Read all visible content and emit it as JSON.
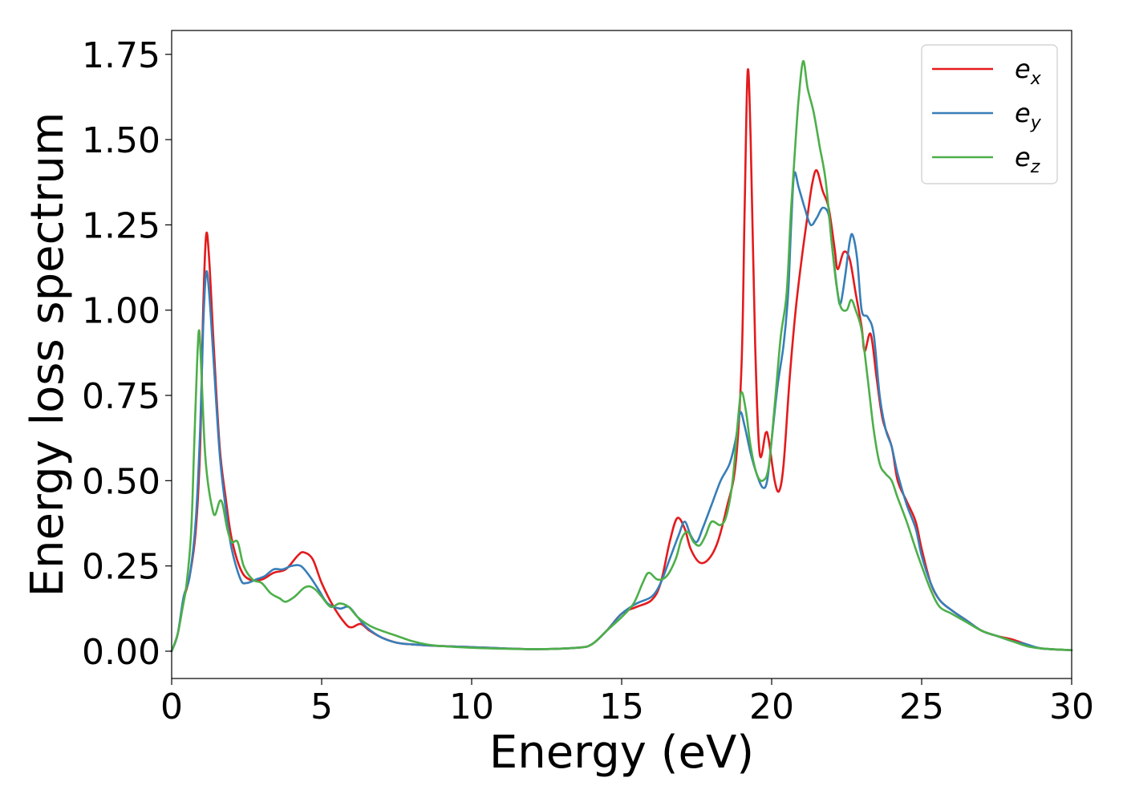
{
  "chart_data": {
    "type": "line",
    "title": "",
    "xlabel": "Energy (eV)",
    "ylabel": "Energy loss spectrum",
    "xlim": [
      0,
      30
    ],
    "ylim": [
      -0.08,
      1.82
    ],
    "xticks": [
      0,
      5,
      10,
      15,
      20,
      25,
      30
    ],
    "xtick_labels": [
      "0",
      "5",
      "10",
      "15",
      "20",
      "25",
      "30"
    ],
    "yticks": [
      0.0,
      0.25,
      0.5,
      0.75,
      1.0,
      1.25,
      1.5,
      1.75
    ],
    "ytick_labels": [
      "0.00",
      "0.25",
      "0.50",
      "0.75",
      "1.00",
      "1.25",
      "1.50",
      "1.75"
    ],
    "grid": false,
    "legend_position": "top-right",
    "series": [
      {
        "name": "e_x",
        "legend_base": "e",
        "legend_sub": "x",
        "color": "#e41a1c",
        "points": [
          [
            0,
            0
          ],
          [
            0.2,
            0.05
          ],
          [
            0.4,
            0.15
          ],
          [
            0.6,
            0.22
          ],
          [
            0.8,
            0.35
          ],
          [
            0.95,
            0.6
          ],
          [
            1.05,
            1.0
          ],
          [
            1.15,
            1.22
          ],
          [
            1.25,
            1.15
          ],
          [
            1.4,
            0.9
          ],
          [
            1.6,
            0.6
          ],
          [
            1.8,
            0.45
          ],
          [
            2.0,
            0.33
          ],
          [
            2.3,
            0.24
          ],
          [
            2.6,
            0.21
          ],
          [
            3.0,
            0.21
          ],
          [
            3.4,
            0.23
          ],
          [
            3.8,
            0.24
          ],
          [
            4.2,
            0.28
          ],
          [
            4.4,
            0.29
          ],
          [
            4.7,
            0.27
          ],
          [
            5.0,
            0.2
          ],
          [
            5.4,
            0.13
          ],
          [
            5.8,
            0.08
          ],
          [
            6.0,
            0.07
          ],
          [
            6.3,
            0.08
          ],
          [
            6.6,
            0.06
          ],
          [
            7.0,
            0.04
          ],
          [
            7.5,
            0.025
          ],
          [
            8.0,
            0.02
          ],
          [
            9.0,
            0.015
          ],
          [
            10.0,
            0.012
          ],
          [
            12.0,
            0.006
          ],
          [
            13.5,
            0.01
          ],
          [
            14.0,
            0.02
          ],
          [
            14.5,
            0.06
          ],
          [
            15.0,
            0.11
          ],
          [
            15.5,
            0.13
          ],
          [
            16.0,
            0.15
          ],
          [
            16.3,
            0.2
          ],
          [
            16.6,
            0.32
          ],
          [
            16.85,
            0.39
          ],
          [
            17.1,
            0.36
          ],
          [
            17.3,
            0.3
          ],
          [
            17.6,
            0.26
          ],
          [
            17.9,
            0.27
          ],
          [
            18.2,
            0.32
          ],
          [
            18.5,
            0.42
          ],
          [
            18.8,
            0.55
          ],
          [
            19.0,
            0.85
          ],
          [
            19.1,
            1.3
          ],
          [
            19.2,
            1.7
          ],
          [
            19.3,
            1.5
          ],
          [
            19.45,
            0.9
          ],
          [
            19.6,
            0.58
          ],
          [
            19.8,
            0.64
          ],
          [
            19.9,
            0.62
          ],
          [
            20.1,
            0.5
          ],
          [
            20.25,
            0.47
          ],
          [
            20.4,
            0.55
          ],
          [
            20.6,
            0.8
          ],
          [
            20.8,
            1.0
          ],
          [
            21.0,
            1.15
          ],
          [
            21.2,
            1.28
          ],
          [
            21.35,
            1.37
          ],
          [
            21.5,
            1.41
          ],
          [
            21.7,
            1.35
          ],
          [
            21.9,
            1.3
          ],
          [
            22.1,
            1.18
          ],
          [
            22.2,
            1.12
          ],
          [
            22.4,
            1.17
          ],
          [
            22.6,
            1.15
          ],
          [
            22.8,
            1.05
          ],
          [
            23.0,
            0.95
          ],
          [
            23.1,
            0.88
          ],
          [
            23.3,
            0.93
          ],
          [
            23.5,
            0.8
          ],
          [
            23.7,
            0.68
          ],
          [
            24.0,
            0.6
          ],
          [
            24.2,
            0.5
          ],
          [
            24.5,
            0.44
          ],
          [
            24.8,
            0.38
          ],
          [
            25.0,
            0.3
          ],
          [
            25.3,
            0.2
          ],
          [
            25.6,
            0.15
          ],
          [
            26.0,
            0.12
          ],
          [
            26.5,
            0.09
          ],
          [
            27.0,
            0.06
          ],
          [
            27.5,
            0.045
          ],
          [
            28.0,
            0.035
          ],
          [
            28.5,
            0.02
          ],
          [
            29.0,
            0.008
          ],
          [
            30.0,
            0.003
          ]
        ]
      },
      {
        "name": "e_y",
        "legend_base": "e",
        "legend_sub": "y",
        "color": "#377eb8",
        "points": [
          [
            0,
            0
          ],
          [
            0.2,
            0.05
          ],
          [
            0.4,
            0.16
          ],
          [
            0.6,
            0.22
          ],
          [
            0.8,
            0.38
          ],
          [
            0.95,
            0.65
          ],
          [
            1.05,
            0.95
          ],
          [
            1.15,
            1.11
          ],
          [
            1.25,
            1.05
          ],
          [
            1.4,
            0.85
          ],
          [
            1.6,
            0.58
          ],
          [
            1.8,
            0.42
          ],
          [
            2.0,
            0.3
          ],
          [
            2.3,
            0.21
          ],
          [
            2.5,
            0.2
          ],
          [
            2.8,
            0.21
          ],
          [
            3.1,
            0.22
          ],
          [
            3.4,
            0.24
          ],
          [
            3.7,
            0.24
          ],
          [
            4.0,
            0.25
          ],
          [
            4.3,
            0.25
          ],
          [
            4.6,
            0.22
          ],
          [
            4.9,
            0.18
          ],
          [
            5.2,
            0.14
          ],
          [
            5.6,
            0.125
          ],
          [
            5.9,
            0.13
          ],
          [
            6.2,
            0.1
          ],
          [
            6.5,
            0.07
          ],
          [
            7.0,
            0.04
          ],
          [
            7.5,
            0.025
          ],
          [
            8.0,
            0.02
          ],
          [
            9.0,
            0.015
          ],
          [
            10.0,
            0.012
          ],
          [
            12.0,
            0.006
          ],
          [
            13.5,
            0.01
          ],
          [
            14.0,
            0.02
          ],
          [
            14.5,
            0.06
          ],
          [
            15.0,
            0.11
          ],
          [
            15.5,
            0.14
          ],
          [
            16.0,
            0.16
          ],
          [
            16.3,
            0.2
          ],
          [
            16.6,
            0.27
          ],
          [
            16.9,
            0.34
          ],
          [
            17.1,
            0.38
          ],
          [
            17.3,
            0.34
          ],
          [
            17.5,
            0.32
          ],
          [
            17.7,
            0.36
          ],
          [
            18.0,
            0.43
          ],
          [
            18.3,
            0.5
          ],
          [
            18.6,
            0.55
          ],
          [
            18.8,
            0.62
          ],
          [
            18.95,
            0.7
          ],
          [
            19.1,
            0.66
          ],
          [
            19.3,
            0.58
          ],
          [
            19.5,
            0.52
          ],
          [
            19.7,
            0.48
          ],
          [
            19.85,
            0.5
          ],
          [
            20.0,
            0.62
          ],
          [
            20.2,
            0.78
          ],
          [
            20.4,
            0.9
          ],
          [
            20.55,
            1.05
          ],
          [
            20.65,
            1.25
          ],
          [
            20.75,
            1.4
          ],
          [
            20.9,
            1.36
          ],
          [
            21.1,
            1.3
          ],
          [
            21.3,
            1.25
          ],
          [
            21.5,
            1.27
          ],
          [
            21.7,
            1.3
          ],
          [
            21.9,
            1.28
          ],
          [
            22.0,
            1.2
          ],
          [
            22.2,
            1.05
          ],
          [
            22.3,
            1.02
          ],
          [
            22.45,
            1.1
          ],
          [
            22.6,
            1.2
          ],
          [
            22.7,
            1.22
          ],
          [
            22.85,
            1.15
          ],
          [
            23.0,
            1.0
          ],
          [
            23.2,
            0.98
          ],
          [
            23.4,
            0.93
          ],
          [
            23.6,
            0.75
          ],
          [
            23.8,
            0.65
          ],
          [
            24.0,
            0.6
          ],
          [
            24.2,
            0.52
          ],
          [
            24.5,
            0.43
          ],
          [
            24.8,
            0.36
          ],
          [
            25.0,
            0.28
          ],
          [
            25.3,
            0.2
          ],
          [
            25.6,
            0.15
          ],
          [
            26.0,
            0.12
          ],
          [
            26.5,
            0.09
          ],
          [
            27.0,
            0.06
          ],
          [
            27.5,
            0.045
          ],
          [
            28.0,
            0.03
          ],
          [
            28.5,
            0.02
          ],
          [
            29.0,
            0.008
          ],
          [
            30.0,
            0.003
          ]
        ]
      },
      {
        "name": "e_z",
        "legend_base": "e",
        "legend_sub": "z",
        "color": "#4daf4a",
        "points": [
          [
            0,
            0
          ],
          [
            0.2,
            0.05
          ],
          [
            0.35,
            0.12
          ],
          [
            0.5,
            0.2
          ],
          [
            0.65,
            0.35
          ],
          [
            0.75,
            0.6
          ],
          [
            0.85,
            0.85
          ],
          [
            0.92,
            0.94
          ],
          [
            1.0,
            0.8
          ],
          [
            1.1,
            0.6
          ],
          [
            1.2,
            0.5
          ],
          [
            1.35,
            0.42
          ],
          [
            1.45,
            0.4
          ],
          [
            1.6,
            0.44
          ],
          [
            1.7,
            0.43
          ],
          [
            1.85,
            0.36
          ],
          [
            2.0,
            0.32
          ],
          [
            2.2,
            0.32
          ],
          [
            2.4,
            0.25
          ],
          [
            2.7,
            0.21
          ],
          [
            3.0,
            0.2
          ],
          [
            3.3,
            0.17
          ],
          [
            3.6,
            0.155
          ],
          [
            3.8,
            0.145
          ],
          [
            4.1,
            0.16
          ],
          [
            4.4,
            0.185
          ],
          [
            4.6,
            0.19
          ],
          [
            4.8,
            0.18
          ],
          [
            5.0,
            0.16
          ],
          [
            5.3,
            0.13
          ],
          [
            5.6,
            0.14
          ],
          [
            5.9,
            0.13
          ],
          [
            6.2,
            0.1
          ],
          [
            6.6,
            0.075
          ],
          [
            7.0,
            0.06
          ],
          [
            7.5,
            0.045
          ],
          [
            8.0,
            0.03
          ],
          [
            8.5,
            0.02
          ],
          [
            9.0,
            0.015
          ],
          [
            10.0,
            0.01
          ],
          [
            12.0,
            0.006
          ],
          [
            13.5,
            0.01
          ],
          [
            14.0,
            0.02
          ],
          [
            14.5,
            0.06
          ],
          [
            15.0,
            0.1
          ],
          [
            15.4,
            0.14
          ],
          [
            15.7,
            0.2
          ],
          [
            15.9,
            0.23
          ],
          [
            16.2,
            0.21
          ],
          [
            16.5,
            0.22
          ],
          [
            16.8,
            0.27
          ],
          [
            17.0,
            0.33
          ],
          [
            17.2,
            0.35
          ],
          [
            17.4,
            0.32
          ],
          [
            17.6,
            0.31
          ],
          [
            17.8,
            0.34
          ],
          [
            18.0,
            0.38
          ],
          [
            18.3,
            0.37
          ],
          [
            18.5,
            0.4
          ],
          [
            18.7,
            0.5
          ],
          [
            18.9,
            0.7
          ],
          [
            19.0,
            0.76
          ],
          [
            19.15,
            0.7
          ],
          [
            19.3,
            0.6
          ],
          [
            19.5,
            0.52
          ],
          [
            19.7,
            0.5
          ],
          [
            19.9,
            0.54
          ],
          [
            20.1,
            0.72
          ],
          [
            20.3,
            0.92
          ],
          [
            20.5,
            1.05
          ],
          [
            20.65,
            1.3
          ],
          [
            20.8,
            1.5
          ],
          [
            20.9,
            1.62
          ],
          [
            21.05,
            1.73
          ],
          [
            21.2,
            1.65
          ],
          [
            21.4,
            1.58
          ],
          [
            21.6,
            1.48
          ],
          [
            21.8,
            1.38
          ],
          [
            22.0,
            1.2
          ],
          [
            22.15,
            1.08
          ],
          [
            22.3,
            1.01
          ],
          [
            22.5,
            1.0
          ],
          [
            22.65,
            1.03
          ],
          [
            22.8,
            1.0
          ],
          [
            23.0,
            0.94
          ],
          [
            23.2,
            0.8
          ],
          [
            23.4,
            0.65
          ],
          [
            23.6,
            0.55
          ],
          [
            23.8,
            0.52
          ],
          [
            24.0,
            0.5
          ],
          [
            24.2,
            0.45
          ],
          [
            24.5,
            0.38
          ],
          [
            24.8,
            0.3
          ],
          [
            25.0,
            0.25
          ],
          [
            25.3,
            0.18
          ],
          [
            25.6,
            0.13
          ],
          [
            26.0,
            0.11
          ],
          [
            26.5,
            0.085
          ],
          [
            27.0,
            0.06
          ],
          [
            27.5,
            0.045
          ],
          [
            28.0,
            0.03
          ],
          [
            28.5,
            0.015
          ],
          [
            29.0,
            0.008
          ],
          [
            30.0,
            0.003
          ]
        ]
      }
    ]
  }
}
